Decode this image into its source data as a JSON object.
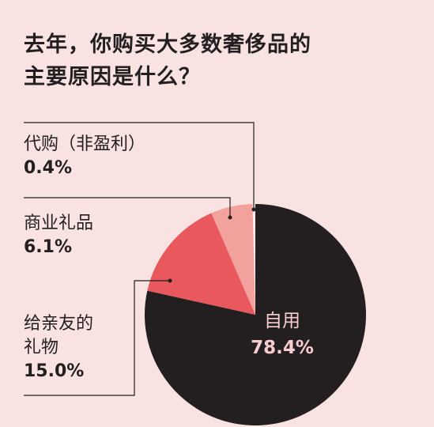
{
  "title_lines": [
    "去年，你购买大多数奢侈品的",
    "主要原因是什么？"
  ],
  "colors": {
    "background": "#f9e2e2",
    "self_use": "#231f20",
    "gift": "#e8585c",
    "business_gift": "#f2a19c",
    "daigou": "#fbeaea",
    "leader_line": "#231f20",
    "inside_text": "#f8cdd0"
  },
  "chart_data": {
    "type": "pie",
    "title": "去年，你购买大多数奢侈品的主要原因是什么？",
    "unit": "%",
    "slices": [
      {
        "label": "自用",
        "value": 78.4,
        "value_label": "78.4%",
        "color": "#231f20"
      },
      {
        "label": "给亲友的礼物",
        "value": 15.0,
        "value_label": "15.0%",
        "color": "#e8585c"
      },
      {
        "label": "商业礼品",
        "value": 6.1,
        "value_label": "6.1%",
        "color": "#f2a19c"
      },
      {
        "label": "代购（非盈利）",
        "value": 0.4,
        "value_label": "0.4%",
        "color": "#fbeaea"
      }
    ]
  }
}
